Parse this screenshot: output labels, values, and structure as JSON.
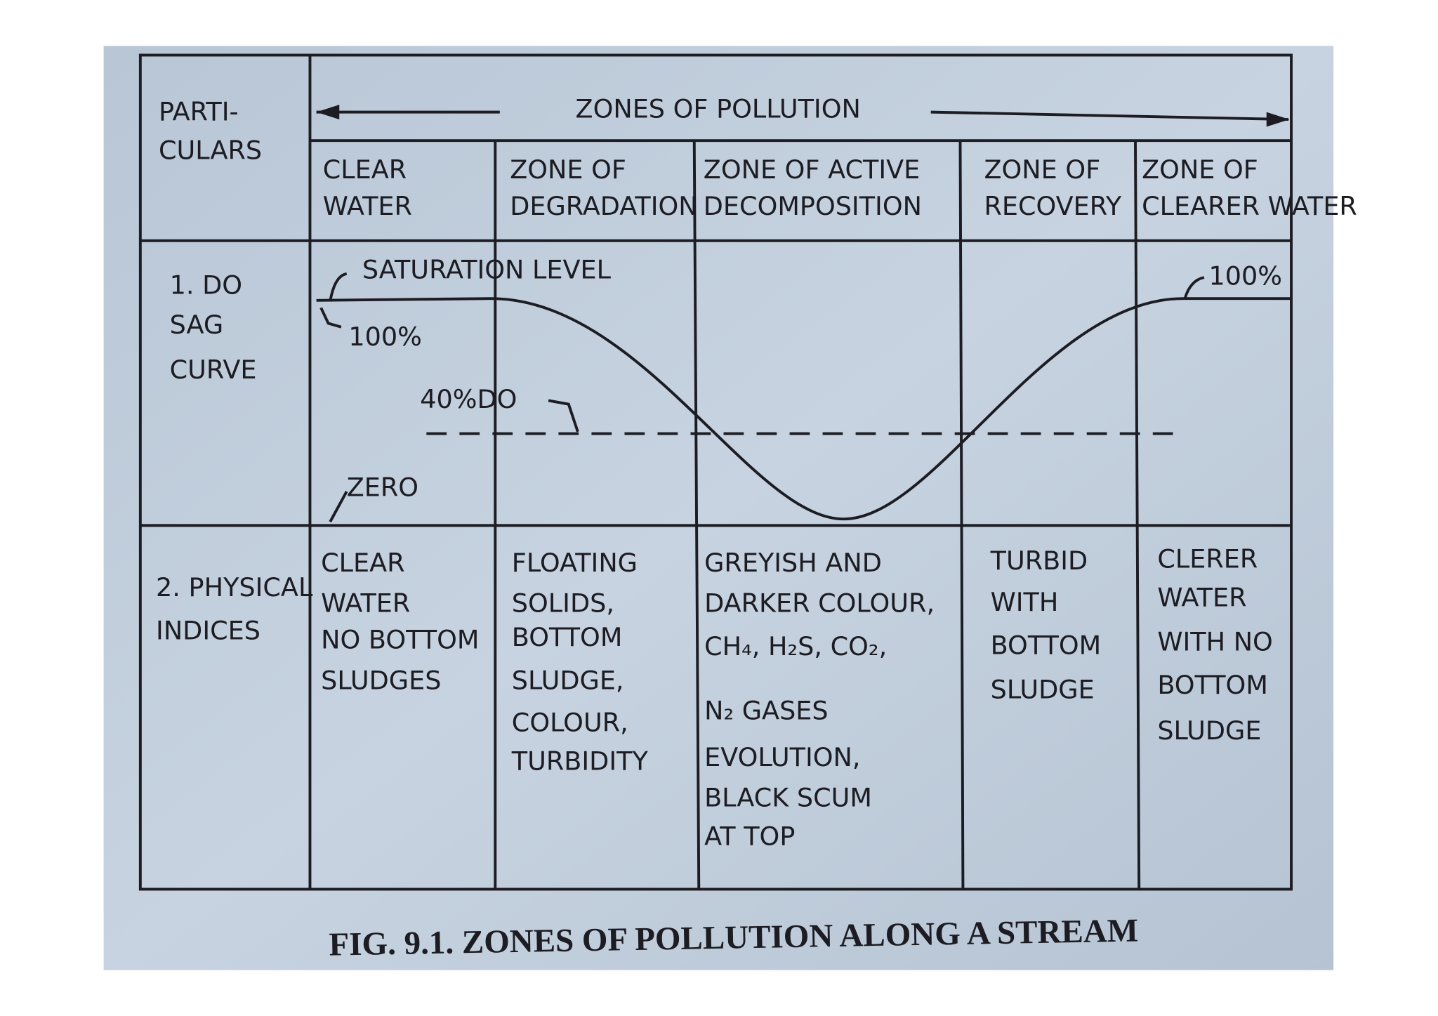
{
  "header": {
    "particulars": [
      "PARTI-",
      "CULARS"
    ],
    "title": "ZONES OF POLLUTION"
  },
  "zones": [
    [
      "CLEAR",
      "WATER"
    ],
    [
      "ZONE OF",
      "DEGRADATION"
    ],
    [
      "ZONE OF ACTIVE",
      "DECOMPOSITION"
    ],
    [
      "ZONE OF",
      "RECOVERY"
    ],
    [
      "ZONE OF",
      "CLEARER WATER"
    ]
  ],
  "rows": [
    {
      "label": [
        "1. DO",
        "SAG",
        "CURVE"
      ],
      "annotations": {
        "saturation_level": "SATURATION LEVEL",
        "start_level": "100%",
        "end_level": "100%",
        "threshold": "40%DO",
        "zero": "ZERO"
      }
    },
    {
      "label": [
        "2. PHYSICAL",
        "INDICES"
      ],
      "cells": [
        [
          "CLEAR",
          "WATER",
          "NO BOTTOM",
          "SLUDGES"
        ],
        [
          "FLOATING",
          "SOLIDS,",
          "BOTTOM",
          "SLUDGE,",
          "COLOUR,",
          "TURBIDITY"
        ],
        [
          "GREYISH AND",
          "DARKER COLOUR,",
          "CH₄, H₂S, CO₂,",
          "N₂ GASES",
          "EVOLUTION,",
          "BLACK SCUM",
          "AT TOP"
        ],
        [
          "TURBID",
          "WITH",
          "BOTTOM",
          "SLUDGE"
        ],
        [
          "CLERER",
          "WATER",
          "WITH NO",
          "BOTTOM",
          "SLUDGE"
        ]
      ]
    }
  ],
  "caption": "FIG. 9.1. ZONES OF POLLUTION ALONG A STREAM"
}
